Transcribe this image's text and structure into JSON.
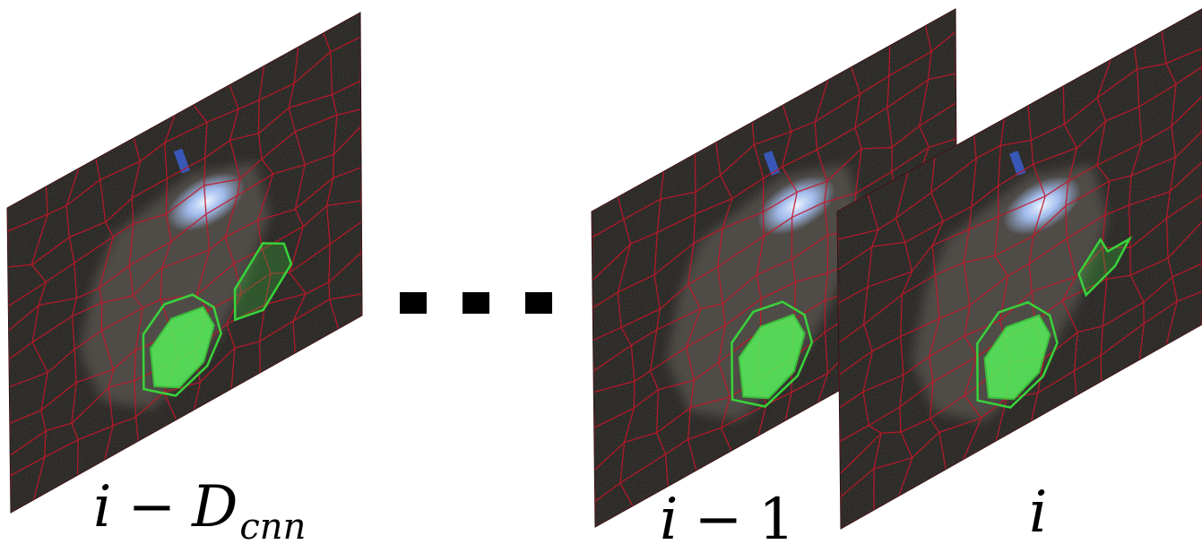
{
  "frames": [
    {
      "id": "frame-i-minus-dcnn",
      "label_var": "i",
      "label_op": "−",
      "label_main": "D",
      "label_sub": "cnn"
    },
    {
      "id": "frame-i-minus-1",
      "label_var": "i",
      "label_op": "−",
      "label_num": "1"
    },
    {
      "id": "frame-i",
      "label_var": "i"
    }
  ],
  "ellipsis": "...",
  "colors": {
    "background": "#ffffff",
    "frame_fill": "#1b1a17",
    "superpixel_border": "#c0182a",
    "object_fill": "#6a6560",
    "highlight": "#ffffff",
    "glow": "#aac8ff",
    "blue": "#3a5fd0",
    "green_segment": "#39d33a",
    "green_fill": "#56f05a",
    "text": "#000000"
  }
}
